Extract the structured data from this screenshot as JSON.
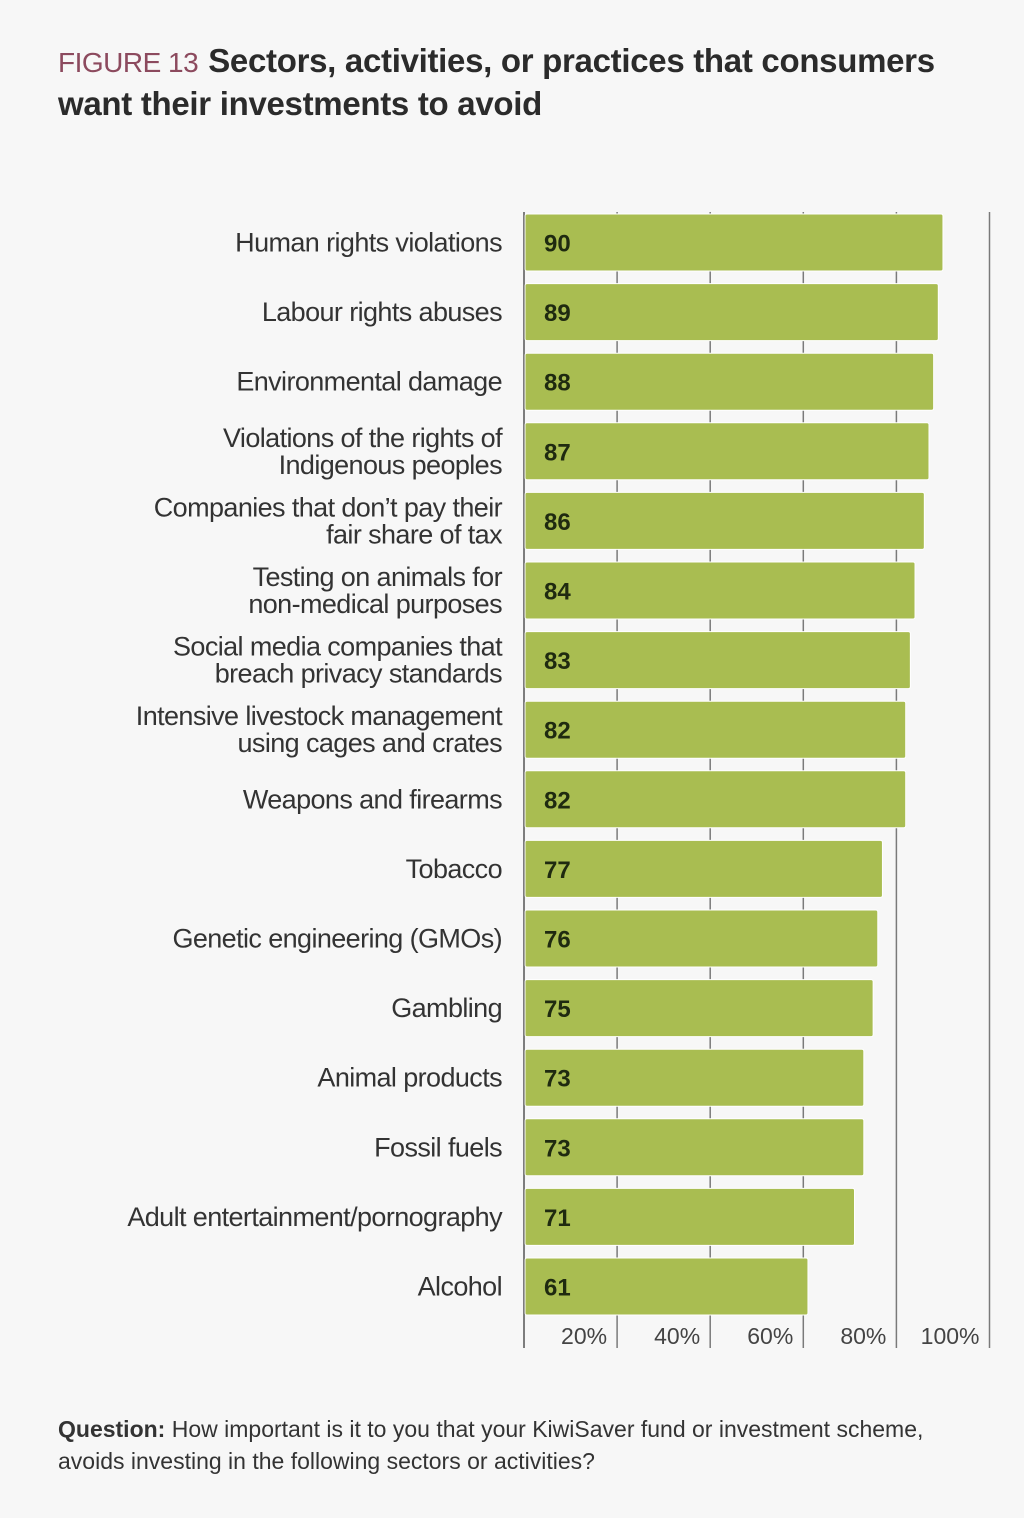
{
  "header": {
    "figure_label": "FIGURE 13",
    "title": "Sectors, activities, or practices that consumers want their investments to avoid"
  },
  "chart_data": {
    "type": "bar",
    "orientation": "horizontal",
    "categories": [
      [
        "Human rights violations"
      ],
      [
        "Labour rights abuses"
      ],
      [
        "Environmental damage"
      ],
      [
        "Violations of the rights of",
        "Indigenous peoples"
      ],
      [
        "Companies that don’t pay their",
        "fair share of tax"
      ],
      [
        "Testing on animals for",
        "non-medical purposes"
      ],
      [
        "Social media companies that",
        "breach privacy standards"
      ],
      [
        "Intensive livestock management",
        "using cages and crates"
      ],
      [
        "Weapons and firearms"
      ],
      [
        "Tobacco"
      ],
      [
        "Genetic engineering (GMOs)"
      ],
      [
        "Gambling"
      ],
      [
        "Animal products"
      ],
      [
        "Fossil fuels"
      ],
      [
        "Adult entertainment/pornography"
      ],
      [
        "Alcohol"
      ]
    ],
    "values": [
      90,
      89,
      88,
      87,
      86,
      84,
      83,
      82,
      82,
      77,
      76,
      75,
      73,
      73,
      71,
      61
    ],
    "value_labels": [
      "90",
      "89",
      "88",
      "87",
      "86",
      "84",
      "83",
      "82",
      "82",
      "77",
      "76",
      "75",
      "73",
      "73",
      "71",
      "61"
    ],
    "xlim": [
      0,
      100
    ],
    "xticks": [
      20,
      40,
      60,
      80,
      100
    ],
    "xtick_labels": [
      "20%",
      "40%",
      "60%",
      "80%",
      "100%"
    ],
    "grid": true,
    "bar_color": "#a9bd51",
    "bar_edge_color": "#ffffff",
    "grid_color": "#7a7a7a",
    "label_color": "#333333",
    "value_label_color": "#1f2a10"
  },
  "footer": {
    "question_label": "Question:",
    "question_text": " How important is it to you that your KiwiSaver fund or investment scheme, avoids investing in the following sectors or activities?"
  }
}
